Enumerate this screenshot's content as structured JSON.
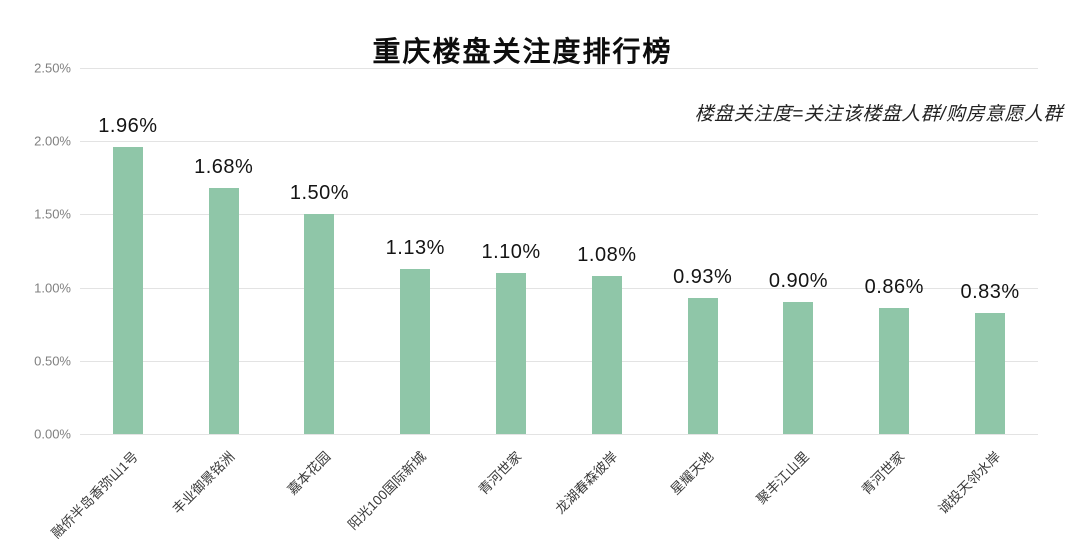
{
  "colors": {
    "bar": "#8fc6a8",
    "gridline": "#e3e3e3",
    "y_axis_label": "#808080",
    "x_axis_label": "#3a3a3a",
    "data_label": "#141414",
    "title": "#0d0d0d"
  },
  "chart_data": {
    "type": "bar",
    "title": "重庆楼盘关注度排行榜",
    "annotation": "楼盘关注度=关注该楼盘人群/购房意愿人群",
    "categories": [
      "融侨半岛香弥山1号",
      "丰业御景铭洲",
      "嘉本花园",
      "阳光100国际新城",
      "青河世家",
      "龙湖春森彼岸",
      "星耀天地",
      "聚丰江山里",
      "青河世家",
      "诚投天邻水岸"
    ],
    "values": [
      1.96,
      1.68,
      1.5,
      1.13,
      1.1,
      1.08,
      0.93,
      0.9,
      0.86,
      0.83
    ],
    "value_labels": [
      "1.96%",
      "1.68%",
      "1.50%",
      "1.13%",
      "1.10%",
      "1.08%",
      "0.93%",
      "0.90%",
      "0.86%",
      "0.83%"
    ],
    "xlabel": "",
    "ylabel": "",
    "ylim": [
      0,
      2.5
    ],
    "ytick_step": 0.5,
    "yticks": [
      "0.00%",
      "0.50%",
      "1.00%",
      "1.50%",
      "2.00%",
      "2.50%"
    ],
    "grid": true,
    "legend": "none",
    "bar_color": "#8fc6a8"
  }
}
